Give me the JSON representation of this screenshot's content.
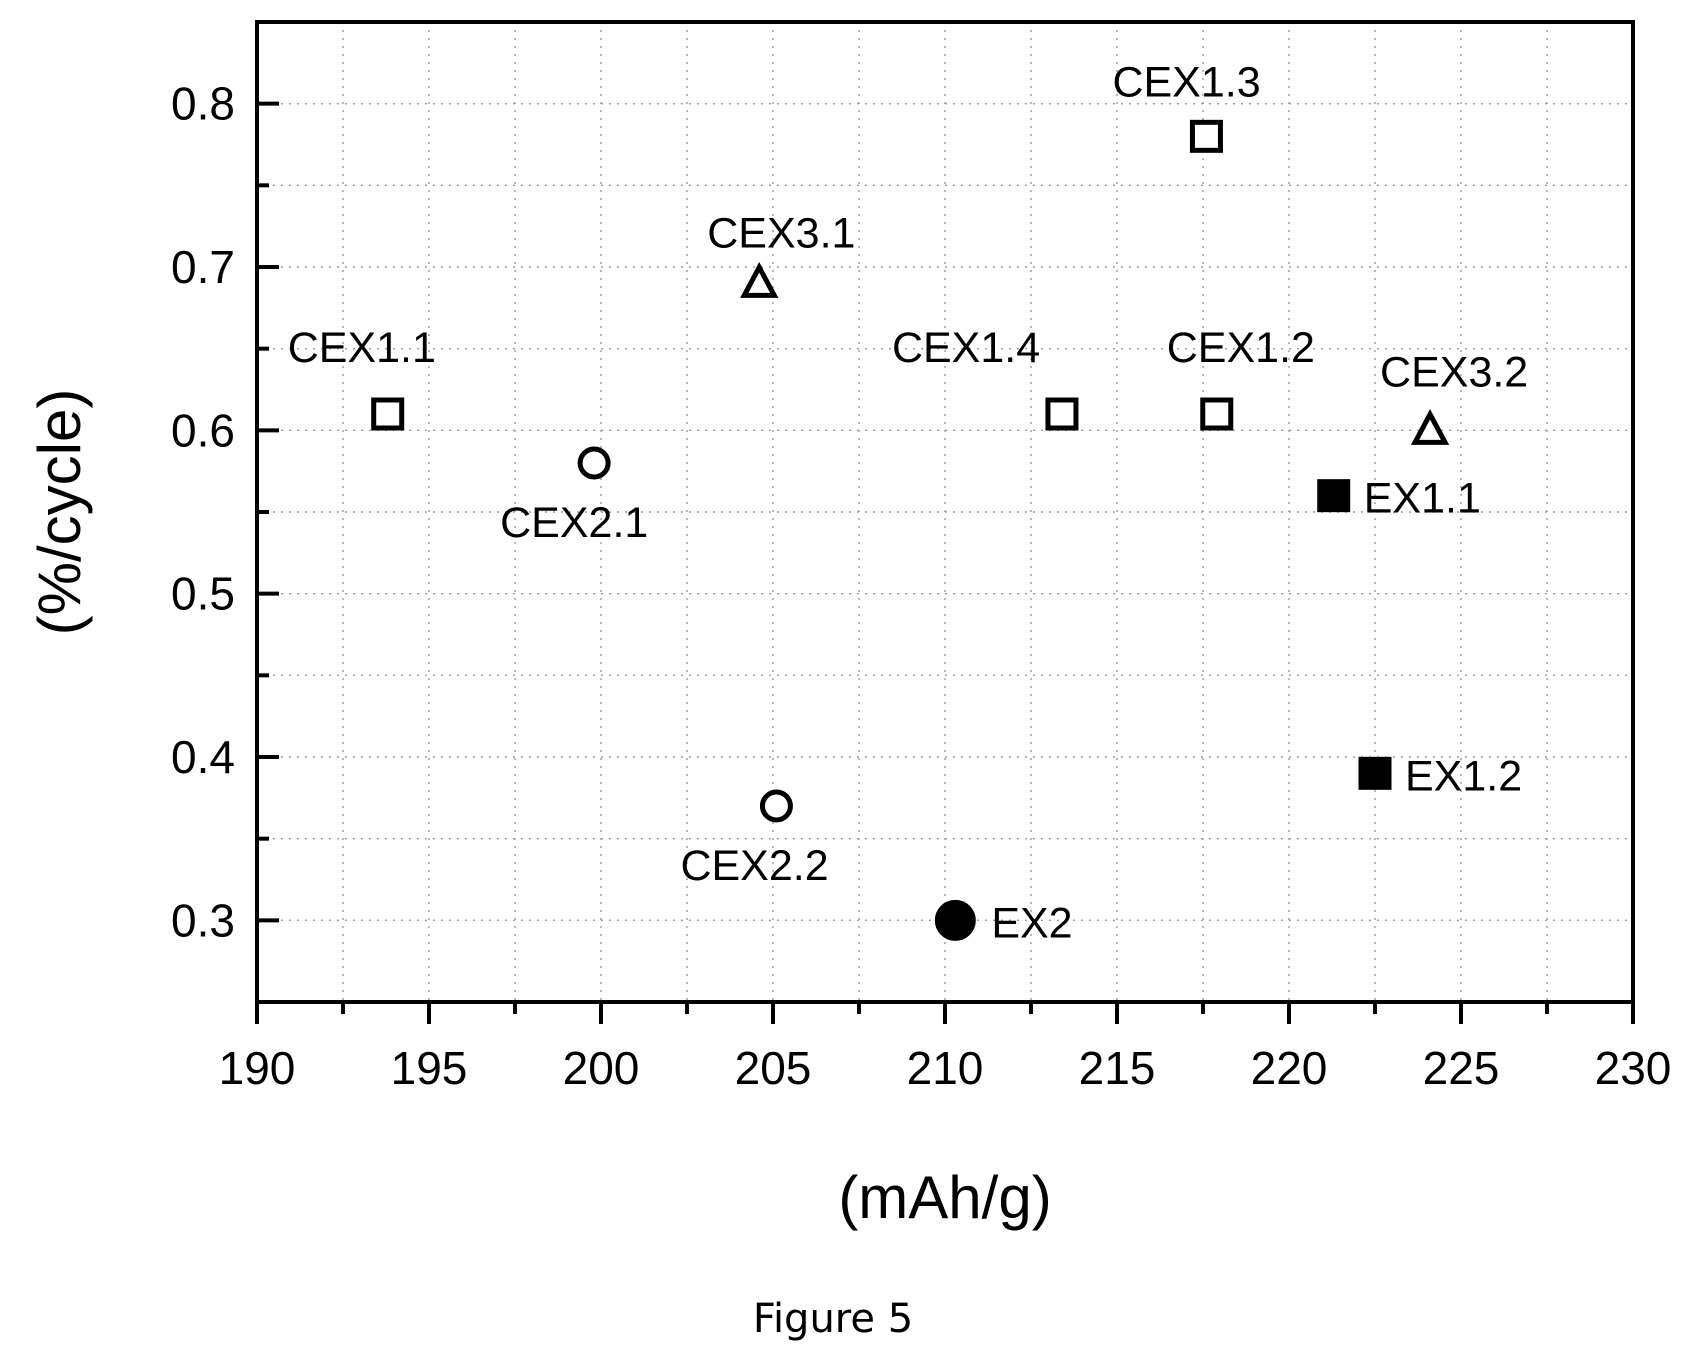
{
  "chart_data": {
    "type": "scatter",
    "title": "",
    "xlabel": "(mAh/g)",
    "ylabel": "(%/cycle)",
    "xlim": [
      190,
      230
    ],
    "ylim": [
      0.25,
      0.85
    ],
    "xticks": [
      190,
      195,
      200,
      205,
      210,
      215,
      220,
      225,
      230
    ],
    "xtick_labels": [
      "190",
      "195",
      "200",
      "205",
      "210",
      "215",
      "220",
      "225",
      "230"
    ],
    "yticks": [
      0.3,
      0.4,
      0.5,
      0.6,
      0.7,
      0.8
    ],
    "ytick_labels": [
      "0.3",
      "0.4",
      "0.5",
      "0.6",
      "0.7",
      "0.8"
    ],
    "grid": true,
    "legend": "none",
    "points": [
      {
        "label": "CEX1.1",
        "x": 193.8,
        "y": 0.61,
        "marker": "open-square"
      },
      {
        "label": "CEX1.2",
        "x": 217.9,
        "y": 0.61,
        "marker": "open-square"
      },
      {
        "label": "CEX1.3",
        "x": 217.6,
        "y": 0.78,
        "marker": "open-square"
      },
      {
        "label": "CEX1.4",
        "x": 213.4,
        "y": 0.61,
        "marker": "open-square"
      },
      {
        "label": "CEX2.1",
        "x": 199.8,
        "y": 0.58,
        "marker": "open-circle"
      },
      {
        "label": "CEX2.2",
        "x": 205.1,
        "y": 0.37,
        "marker": "open-circle"
      },
      {
        "label": "CEX3.1",
        "x": 204.6,
        "y": 0.69,
        "marker": "open-triangle"
      },
      {
        "label": "CEX3.2",
        "x": 224.1,
        "y": 0.6,
        "marker": "open-triangle"
      },
      {
        "label": "EX1.1",
        "x": 221.3,
        "y": 0.56,
        "marker": "filled-square"
      },
      {
        "label": "EX1.2",
        "x": 222.5,
        "y": 0.39,
        "marker": "filled-square"
      },
      {
        "label": "EX2",
        "x": 210.3,
        "y": 0.3,
        "marker": "filled-circle"
      }
    ]
  },
  "caption": "Figure 5"
}
